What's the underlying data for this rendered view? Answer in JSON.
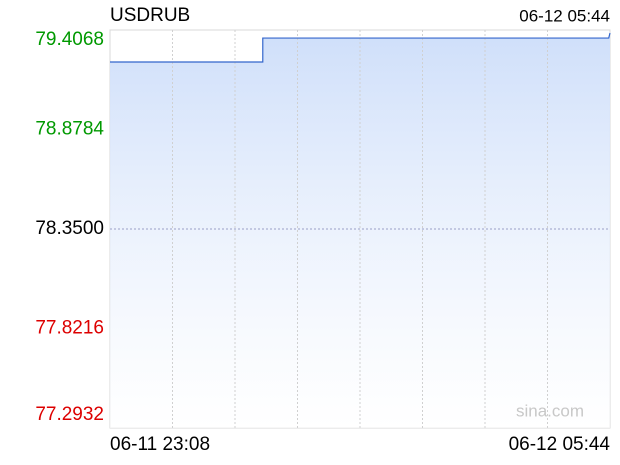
{
  "chart_data": {
    "type": "line",
    "title": "USDRUB",
    "timestamp": "06-12 05:44",
    "watermark": "sina.com",
    "x": [
      0,
      121,
      121,
      395,
      396
    ],
    "series": [
      {
        "name": "USDRUB",
        "color": "#3366cc",
        "values": [
          79.237,
          79.237,
          79.364,
          79.364,
          79.391
        ]
      }
    ],
    "xlim": [
      0,
      396
    ],
    "xticks": [
      {
        "value": 0,
        "label": "06-11 23:08"
      },
      49.5,
      99,
      148.5,
      198,
      247.5,
      297,
      346.5,
      {
        "value": 396,
        "label": "06-12 05:44"
      }
    ],
    "ylim": [
      77.2932,
      79.4068
    ],
    "yticks": [
      {
        "value": 77.2932,
        "label": "77.2932"
      },
      {
        "value": 77.8216,
        "label": "77.8216"
      },
      {
        "value": 78.35,
        "label": "78.3500"
      },
      {
        "value": 78.8784,
        "label": "78.8784"
      },
      {
        "value": 79.4068,
        "label": "79.4068"
      }
    ],
    "up_color": "#009900",
    "down_color": "#dd0000",
    "area_fill": "#cfdffa",
    "grid": true
  }
}
